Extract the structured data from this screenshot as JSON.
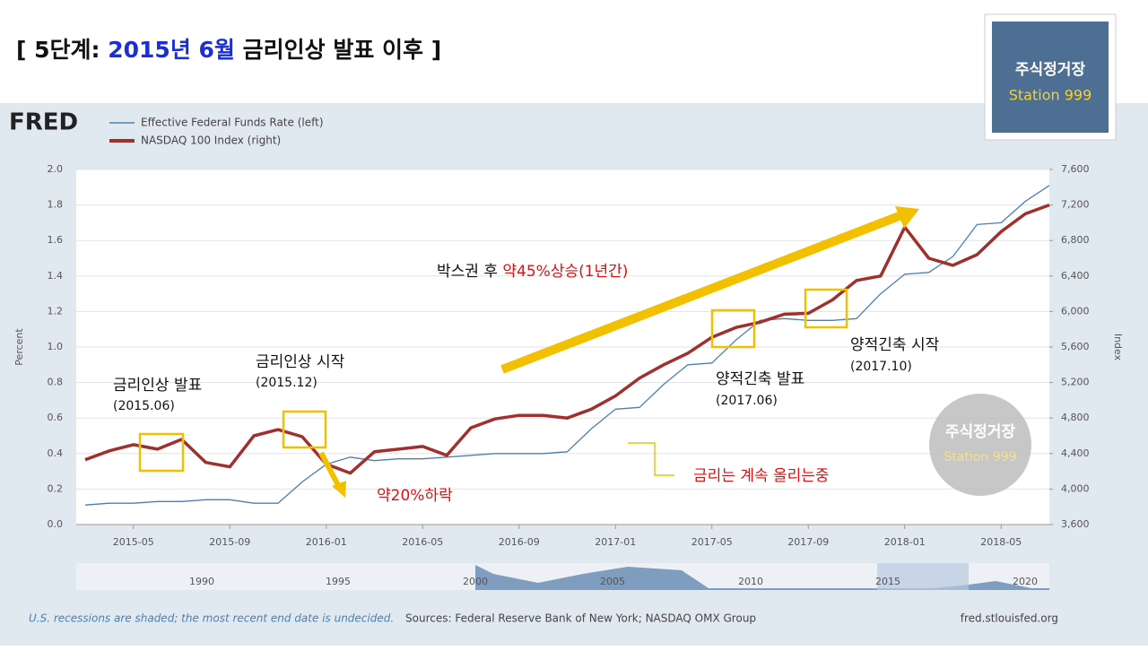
{
  "title_parts": [
    "[ 5단계: ",
    "2015년 6월",
    " 금리인상 발표 이후 ]"
  ],
  "logo": "FRED",
  "watermark": {
    "line1": "주식정거장",
    "line2": "Station 999"
  },
  "annotations": {
    "hike_announce": "금리인상 발표",
    "hike_announce_date": "(2015.06)",
    "hike_start": "금리인상 시작",
    "hike_start_date": "(2015.12)",
    "drop": "약20%하락",
    "rally_prefix": "박스권 후 ",
    "rally": "약45%상승(1년간)",
    "qt_announce": "양적긴축 발표",
    "qt_announce_date": "(2017.06)",
    "qt_start": "양적긴축 시작",
    "qt_start_date": "(2017.10)",
    "rates_up": "금리는 계속 올리는중"
  },
  "navigator_labels": [
    "1990",
    "1995",
    "2000",
    "2005",
    "2010",
    "2015",
    "2020"
  ],
  "footer": {
    "note": "U.S. recessions are shaded; the most recent end date is undecided.",
    "sources": "Sources: Federal Reserve Bank of New York; NASDAQ OMX Group",
    "site": "fred.stlouisfed.org"
  },
  "chart_data": {
    "type": "line",
    "ylabel": "Percent",
    "y2label": "Index",
    "x": [
      "2015-03",
      "2015-04",
      "2015-05",
      "2015-06",
      "2015-07",
      "2015-08",
      "2015-09",
      "2015-10",
      "2015-11",
      "2015-12",
      "2016-01",
      "2016-02",
      "2016-03",
      "2016-04",
      "2016-05",
      "2016-06",
      "2016-07",
      "2016-08",
      "2016-09",
      "2016-10",
      "2016-11",
      "2016-12",
      "2017-01",
      "2017-02",
      "2017-03",
      "2017-04",
      "2017-05",
      "2017-06",
      "2017-07",
      "2017-08",
      "2017-09",
      "2017-10",
      "2017-11",
      "2017-12",
      "2018-01",
      "2018-02",
      "2018-03",
      "2018-04",
      "2018-05",
      "2018-06",
      "2018-07"
    ],
    "xlim": [
      "2015-03",
      "2018-07"
    ],
    "xticks": [
      "2015-05",
      "2015-09",
      "2016-01",
      "2016-05",
      "2016-09",
      "2017-01",
      "2017-05",
      "2017-09",
      "2018-01",
      "2018-05"
    ],
    "ylim": [
      0,
      2
    ],
    "yticks": [
      {
        "value": 0,
        "label": "0.0"
      },
      {
        "value": 0.2,
        "label": "0.2"
      },
      {
        "value": 0.4,
        "label": "0.4"
      },
      {
        "value": 0.6,
        "label": "0.6"
      },
      {
        "value": 0.8,
        "label": "0.8"
      },
      {
        "value": 1,
        "label": "1.0"
      },
      {
        "value": 1.2,
        "label": "1.2"
      },
      {
        "value": 1.4,
        "label": "1.4"
      },
      {
        "value": 1.6,
        "label": "1.6"
      },
      {
        "value": 1.8,
        "label": "1.8"
      },
      {
        "value": 2,
        "label": "2.0"
      }
    ],
    "y2lim": [
      3600,
      7600
    ],
    "y2ticks": [
      {
        "value": 3600,
        "label": "3,600"
      },
      {
        "value": 4000,
        "label": "4,000"
      },
      {
        "value": 4400,
        "label": "4,400"
      },
      {
        "value": 4800,
        "label": "4,800"
      },
      {
        "value": 5200,
        "label": "5,200"
      },
      {
        "value": 5600,
        "label": "5,600"
      },
      {
        "value": 6000,
        "label": "6,000"
      },
      {
        "value": 6400,
        "label": "6,400"
      },
      {
        "value": 6800,
        "label": "6,800"
      },
      {
        "value": 7200,
        "label": "7,200"
      },
      {
        "value": 7600,
        "label": "7,600"
      }
    ],
    "grid": true,
    "series": [
      {
        "name": "Effective Federal Funds Rate (left)",
        "color": "#4a7fb5",
        "axis": "y",
        "values": [
          0.11,
          0.12,
          0.12,
          0.13,
          0.13,
          0.14,
          0.14,
          0.12,
          0.12,
          0.24,
          0.34,
          0.38,
          0.36,
          0.37,
          0.37,
          0.38,
          0.39,
          0.4,
          0.4,
          0.4,
          0.41,
          0.54,
          0.65,
          0.66,
          0.79,
          0.9,
          0.91,
          1.04,
          1.15,
          1.16,
          1.15,
          1.15,
          1.16,
          1.3,
          1.41,
          1.42,
          1.51,
          1.69,
          1.7,
          1.82,
          1.91
        ]
      },
      {
        "name": "NASDAQ 100 Index (right)",
        "color": "#a0302c",
        "axis": "y2",
        "values": [
          4330,
          4430,
          4500,
          4450,
          4560,
          4300,
          4250,
          4600,
          4670,
          4590,
          4280,
          4180,
          4420,
          4450,
          4480,
          4380,
          4690,
          4790,
          4830,
          4830,
          4800,
          4900,
          5050,
          5250,
          5400,
          5530,
          5710,
          5820,
          5880,
          5970,
          5980,
          6130,
          6350,
          6400,
          6950,
          6600,
          6520,
          6640,
          6900,
          7100,
          7200
        ]
      }
    ]
  }
}
